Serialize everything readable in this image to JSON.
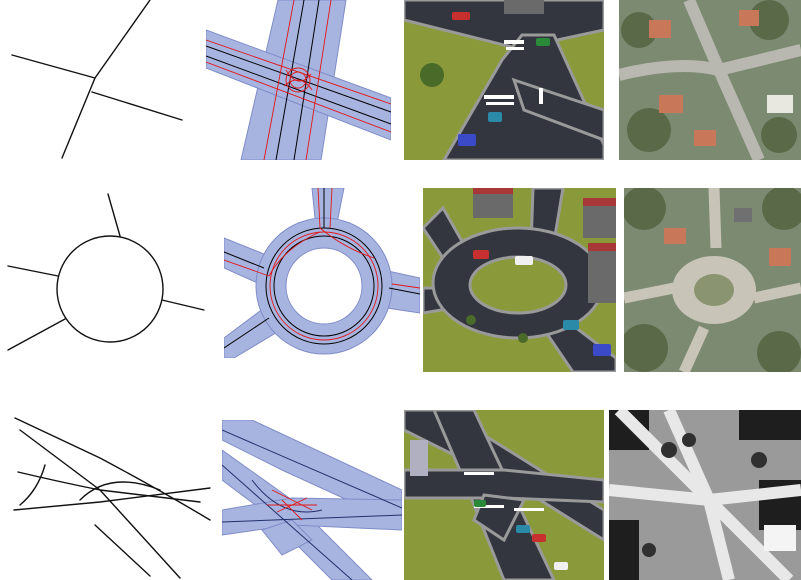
{
  "colors": {
    "sketch_stroke": "#111111",
    "network_fill": "#a8b4e0",
    "network_edge": "#7f8cc8",
    "lane_line": "#000000",
    "connector_line": "#e01818",
    "asphalt": "#33353f",
    "road_marking": "#ffffff",
    "grass": "#8a9a3a",
    "building_roof": "#a83838",
    "building_wall": "#6a6a6a",
    "aerial_tone": "#7d8a72",
    "bw_aerial_tone": "#9a9a9a"
  },
  "rows": [
    {
      "name": "intersection",
      "panels": [
        "sketch",
        "road-network",
        "3d-render",
        "aerial-photo"
      ]
    },
    {
      "name": "roundabout",
      "panels": [
        "sketch",
        "road-network",
        "3d-render",
        "aerial-photo"
      ]
    },
    {
      "name": "highway-interchange",
      "panels": [
        "sketch",
        "road-network",
        "3d-render",
        "aerial-photo-bw"
      ]
    }
  ]
}
